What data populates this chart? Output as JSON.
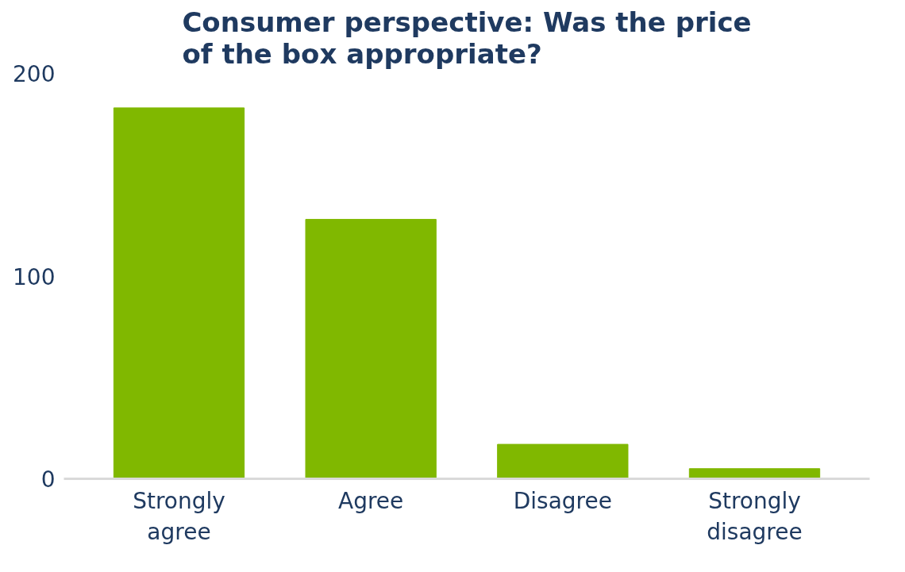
{
  "chart_data": {
    "type": "bar",
    "title": "Consumer perspective: Was the price of the box appropriate?",
    "categories": [
      "Strongly agree",
      "Agree",
      "Disagree",
      "Strongly disagree"
    ],
    "values": [
      183,
      128,
      17,
      5
    ],
    "color": "#80b800",
    "ylim": [
      0,
      200
    ],
    "yticks": [
      0,
      100,
      200
    ],
    "grid": false
  }
}
